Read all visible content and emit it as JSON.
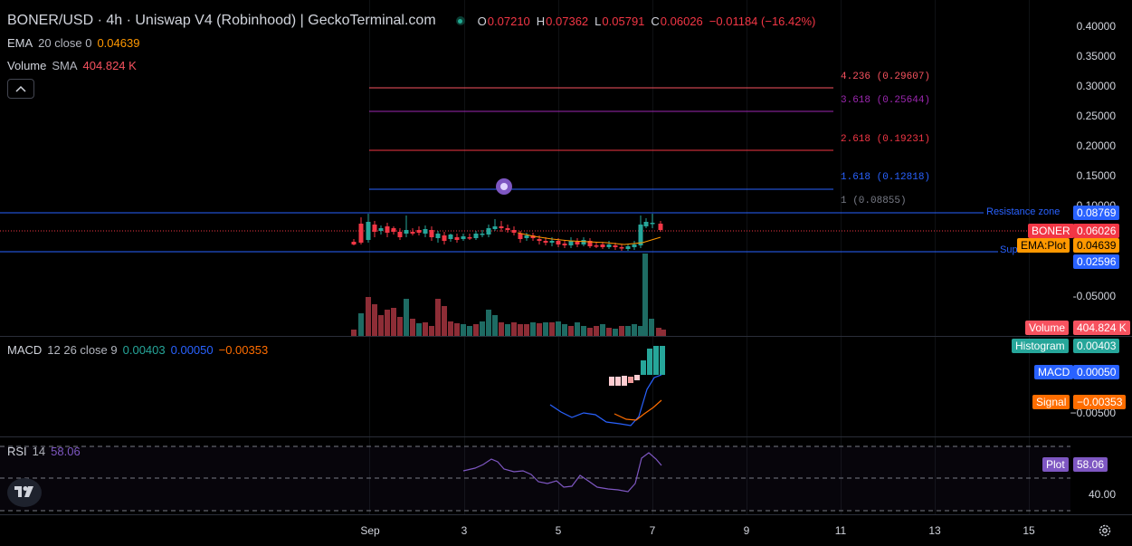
{
  "header": {
    "title": "BONER/USD · 4h · Uniswap V4 (Robinhood) | GeckoTerminal.com",
    "ohlc": {
      "o_label": "O",
      "o": "0.07210",
      "h_label": "H",
      "h": "0.07362",
      "l_label": "L",
      "l": "0.05791",
      "c_label": "C",
      "c": "0.06026",
      "change": "−0.01184 (−16.42%)"
    }
  },
  "indicators": {
    "ema": {
      "name": "EMA",
      "params": "20 close 0",
      "value": "0.04639"
    },
    "volume": {
      "name": "Volume",
      "params": "SMA",
      "value": "404.824 K"
    },
    "macd": {
      "name": "MACD",
      "params": "12 26 close 9",
      "hist": "0.00403",
      "macd": "0.00050",
      "signal": "−0.00353"
    },
    "rsi": {
      "name": "RSI",
      "params": "14",
      "value": "58.06"
    }
  },
  "price_axis": {
    "ticks": [
      "0.40000",
      "0.35000",
      "0.30000",
      "0.25000",
      "0.20000",
      "0.15000",
      "0.10000",
      "-0.05000"
    ],
    "macd_tick": "−0.00500",
    "rsi_tick": "40.00"
  },
  "fib_levels": [
    {
      "label": "4.236 (0.29607)",
      "color": "#f7525f"
    },
    {
      "label": "3.618 (0.25644)",
      "color": "#9c27b0"
    },
    {
      "label": "2.618 (0.19231)",
      "color": "#f23645"
    },
    {
      "label": "1.618 (0.12818)",
      "color": "#2962ff"
    },
    {
      "label": "1 (0.08855)",
      "color": "#787b86"
    }
  ],
  "drawings": {
    "resistance_label": "Resistance zone",
    "support_label": "Sup"
  },
  "tags": {
    "resistance": {
      "value": "0.08769",
      "color": "#2962ff"
    },
    "symbol": {
      "label": "BONER",
      "value": "0.06026",
      "color": "#f23645"
    },
    "ema": {
      "label": "EMA:Plot",
      "value": "0.04639",
      "color": "#ff9800"
    },
    "support": {
      "value": "0.02596",
      "color": "#2962ff"
    },
    "volume": {
      "label": "Volume",
      "value": "404.824 K",
      "color": "#f7525f"
    },
    "histogram": {
      "label": "Histogram",
      "value": "0.00403",
      "color": "#26a69a"
    },
    "macd": {
      "label": "MACD",
      "value": "0.00050",
      "color": "#2962ff"
    },
    "signal": {
      "label": "Signal",
      "value": "−0.00353",
      "color": "#ff6d00"
    },
    "rsi": {
      "label": "Plot",
      "value": "58.06",
      "color": "#7e57c2"
    }
  },
  "time_axis": [
    "Sep",
    "3",
    "5",
    "7",
    "9",
    "11",
    "13",
    "15"
  ],
  "colors": {
    "up": "#26a69a",
    "down": "#f23645",
    "ema": "#ff9800",
    "macd": "#2962ff",
    "signal": "#ff6d00",
    "rsi": "#7e57c2"
  },
  "icons": [
    "chevron-up-icon",
    "tradingview-logo-icon",
    "settings-gear-icon",
    "live-status-dot-icon"
  ]
}
